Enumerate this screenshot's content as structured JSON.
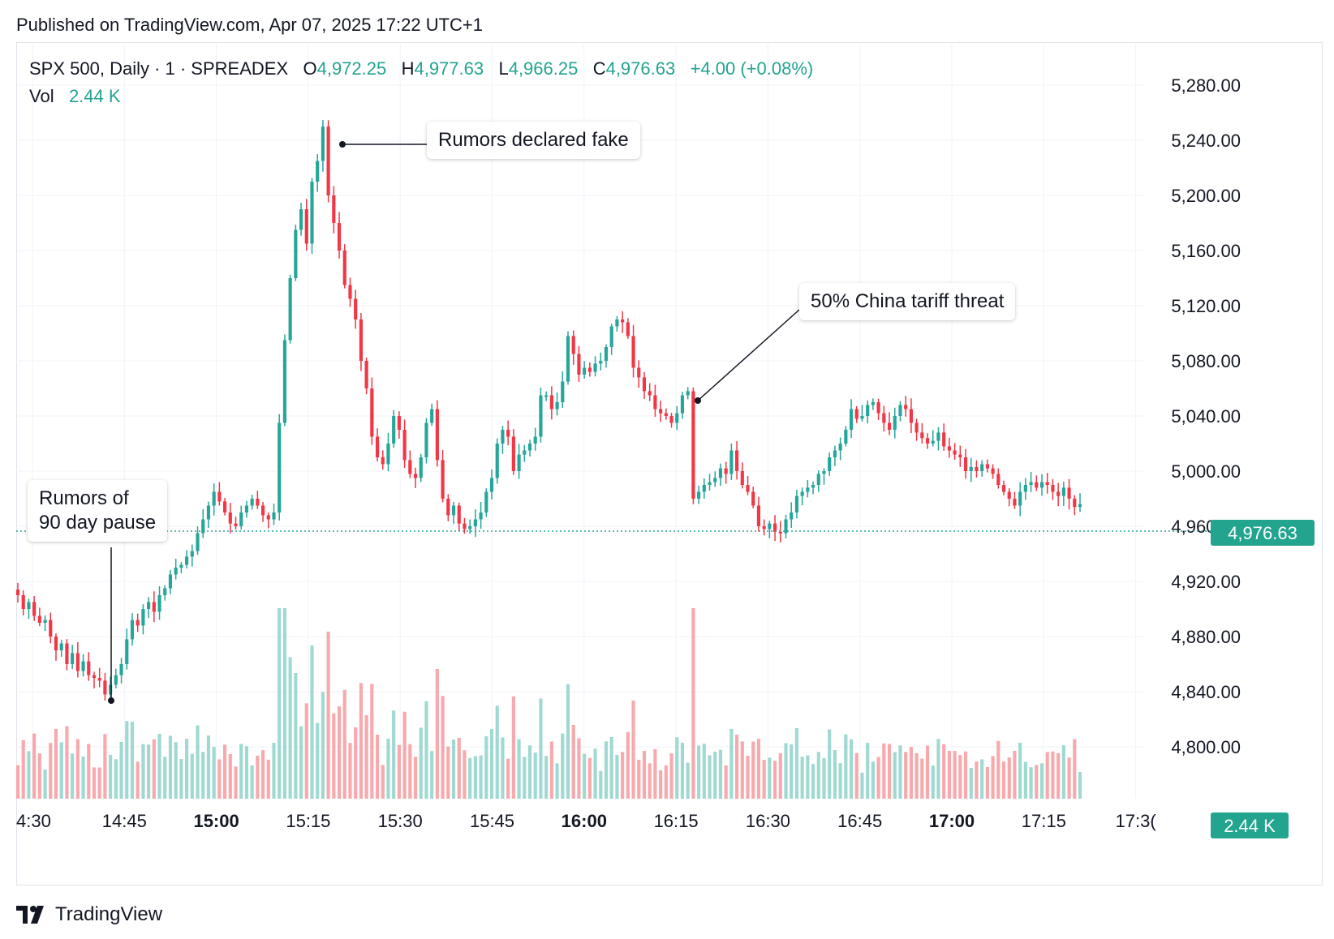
{
  "published": "Published on TradingView.com, Apr 07, 2025 17:22 UTC+1",
  "legend": {
    "symbol": "SPX 500, Daily · 1 · SPREADEX",
    "o_label": "O",
    "o_value": "4,972.25",
    "h_label": "H",
    "h_value": "4,977.63",
    "l_label": "L",
    "l_value": "4,966.25",
    "c_label": "C",
    "c_value": "4,976.63",
    "change": "+4.00 (+0.08%)",
    "vol_label": "Vol",
    "vol_value": "2.44 K"
  },
  "annotations": [
    {
      "text": "Rumors declared fake"
    },
    {
      "text": "50%  China tariff threat"
    },
    {
      "text": "Rumors of\n90 day pause"
    }
  ],
  "price_tag": "4,976.63",
  "volume_tag": "2.44 K",
  "branding": "TradingView",
  "colors": {
    "up": "#26a69a",
    "down": "#f23645",
    "vol_up": "#9fd9d2",
    "vol_down": "#f7a9ad",
    "grid": "#f0f3fa"
  },
  "chart_data": {
    "type": "candlestick",
    "ylim": [
      4780,
      5300
    ],
    "y_ticks": [
      "5,280.00",
      "5,240.00",
      "5,200.00",
      "5,160.00",
      "5,120.00",
      "5,080.00",
      "5,040.00",
      "5,000.00",
      "4,960.00",
      "4,920.00",
      "4,880.00",
      "4,840.00",
      "4,800.00"
    ],
    "x_ticks": [
      {
        "label": "4:30",
        "bold": false
      },
      {
        "label": "14:45",
        "bold": false
      },
      {
        "label": "15:00",
        "bold": true
      },
      {
        "label": "15:15",
        "bold": false
      },
      {
        "label": "15:30",
        "bold": false
      },
      {
        "label": "15:45",
        "bold": false
      },
      {
        "label": "16:00",
        "bold": true
      },
      {
        "label": "16:15",
        "bold": false
      },
      {
        "label": "16:30",
        "bold": false
      },
      {
        "label": "16:45",
        "bold": false
      },
      {
        "label": "17:00",
        "bold": true
      },
      {
        "label": "17:15",
        "bold": false
      },
      {
        "label": "17:3("
      }
    ],
    "closes": [
      4910,
      4900,
      4905,
      4895,
      4890,
      4892,
      4880,
      4870,
      4875,
      4860,
      4868,
      4855,
      4862,
      4852,
      4850,
      4848,
      4838,
      4845,
      4852,
      4860,
      4878,
      4892,
      4888,
      4900,
      4905,
      4898,
      4910,
      4915,
      4925,
      4930,
      4932,
      4938,
      4942,
      4955,
      4965,
      4975,
      4985,
      4978,
      4970,
      4962,
      4960,
      4970,
      4975,
      4980,
      4975,
      4968,
      4965,
      4970,
      5035,
      5095,
      5140,
      5175,
      5190,
      5165,
      5210,
      5225,
      5250,
      5200,
      5180,
      5160,
      5135,
      5125,
      5110,
      5080,
      5060,
      5025,
      5010,
      5005,
      5020,
      5040,
      5030,
      5008,
      4998,
      4995,
      5010,
      5035,
      5045,
      5008,
      4980,
      4968,
      4975,
      4962,
      4958,
      4960,
      4965,
      4970,
      4985,
      4995,
      5020,
      5030,
      5025,
      5000,
      5012,
      5015,
      5020,
      5025,
      5055,
      5055,
      5045,
      5050,
      5065,
      5098,
      5085,
      5070,
      5075,
      5072,
      5078,
      5080,
      5090,
      5105,
      5110,
      5108,
      5098,
      5075,
      5068,
      5058,
      5055,
      5045,
      5042,
      5040,
      5035,
      5042,
      5055,
      5058,
      4980,
      4985,
      4990,
      4992,
      4995,
      5002,
      4998,
      5015,
      5000,
      4990,
      4985,
      4975,
      4960,
      4958,
      4962,
      4956,
      4955,
      4965,
      4970,
      4982,
      4985,
      4988,
      4990,
      4998,
      5000,
      5010,
      5015,
      5020,
      5030,
      5045,
      5038,
      5040,
      5048,
      5050,
      5042,
      5035,
      5030,
      5040,
      5048,
      5045,
      5035,
      5028,
      5024,
      5020,
      5022,
      5028,
      5018,
      5015,
      5012,
      5010,
      5000,
      5003,
      5000,
      5005,
      5002,
      4998,
      4990,
      4985,
      4980,
      4975,
      4985,
      4990,
      4992,
      4988,
      4992,
      4990,
      4985,
      4982,
      4988,
      4980,
      4974,
      4976
    ]
  }
}
